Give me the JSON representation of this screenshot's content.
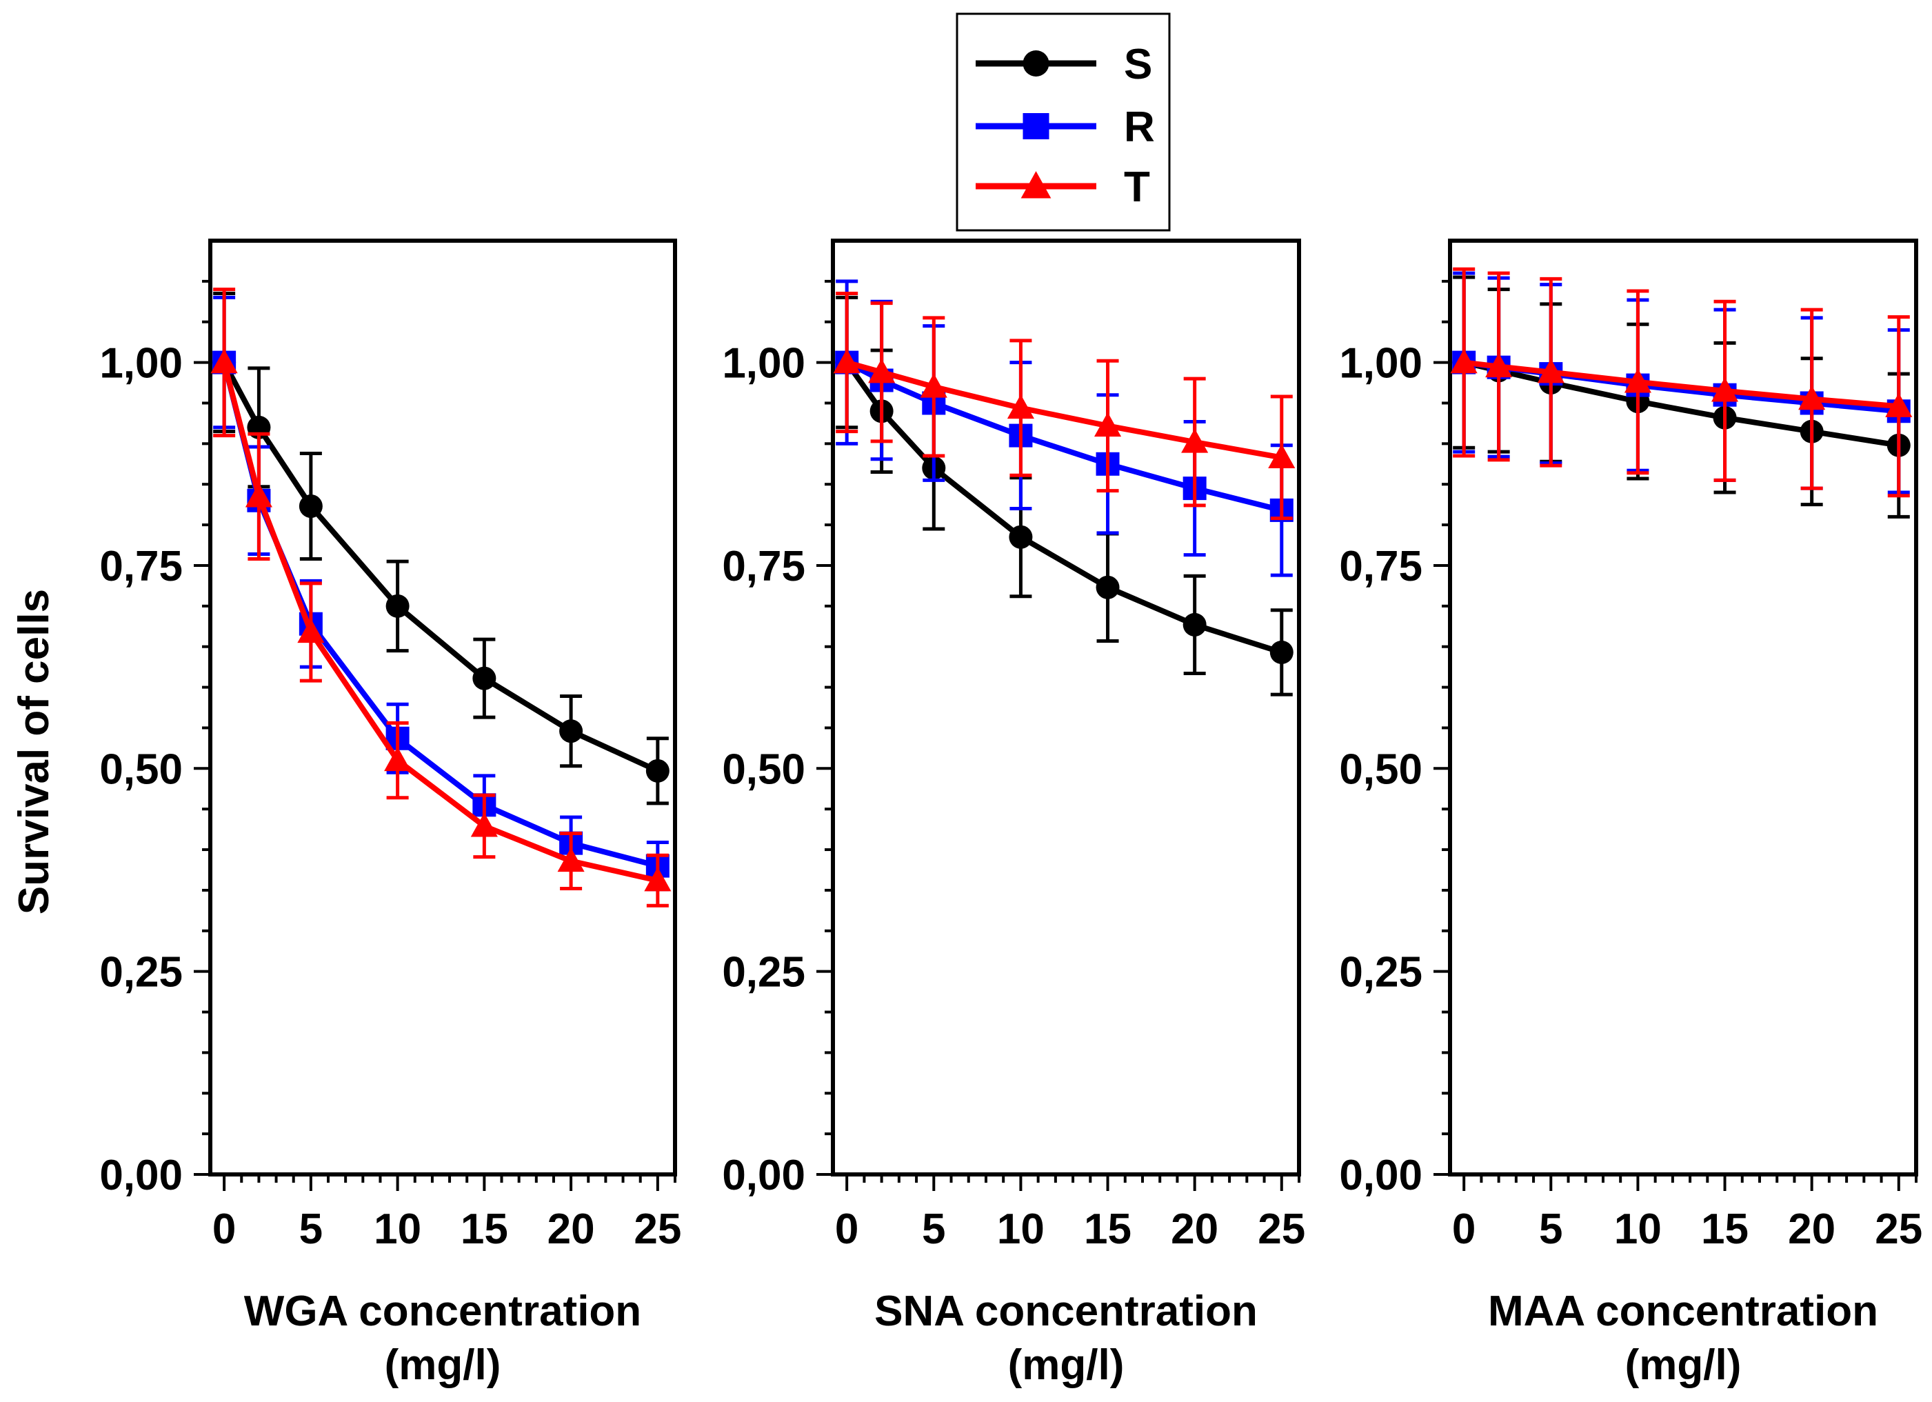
{
  "y_axis_title": "Survival of cells",
  "legend": [
    {
      "label": "S",
      "color": "#000000",
      "marker": "circle"
    },
    {
      "label": "R",
      "color": "#0000ff",
      "marker": "square"
    },
    {
      "label": "T",
      "color": "#ff0000",
      "marker": "triangle"
    }
  ],
  "chart_data": [
    {
      "type": "line",
      "xlabel_line1": "WGA concentration",
      "xlabel_line2": "(mg/l)",
      "ylabel": "Survival of cells",
      "x": [
        0,
        2,
        5,
        10,
        15,
        20,
        25
      ],
      "xlim": [
        -0.8,
        26
      ],
      "ylim": [
        0,
        1.15
      ],
      "xticks": [
        0,
        5,
        10,
        15,
        20,
        25
      ],
      "xtick_labels": [
        "0",
        "5",
        "10",
        "15",
        "20",
        "25"
      ],
      "yticks": [
        0,
        0.25,
        0.5,
        0.75,
        1.0
      ],
      "ytick_labels": [
        "0,00",
        "0,25",
        "0,50",
        "0,75",
        "1,00"
      ],
      "series": [
        {
          "name": "S",
          "values": [
            1.0,
            0.92,
            0.823,
            0.7,
            0.611,
            0.546,
            0.497
          ],
          "errors": [
            0.085,
            0.073,
            0.065,
            0.055,
            0.048,
            0.043,
            0.04
          ]
        },
        {
          "name": "R",
          "values": [
            1.0,
            0.83,
            0.678,
            0.537,
            0.455,
            0.408,
            0.38
          ],
          "errors": [
            0.08,
            0.066,
            0.053,
            0.042,
            0.036,
            0.032,
            0.029
          ]
        },
        {
          "name": "T",
          "values": [
            1.0,
            0.835,
            0.668,
            0.51,
            0.429,
            0.386,
            0.362
          ],
          "errors": [
            0.09,
            0.077,
            0.06,
            0.046,
            0.038,
            0.034,
            0.031
          ]
        }
      ]
    },
    {
      "type": "line",
      "xlabel_line1": "SNA concentration",
      "xlabel_line2": "(mg/l)",
      "ylabel": "",
      "x": [
        0,
        2,
        5,
        10,
        15,
        20,
        25
      ],
      "xlim": [
        -0.8,
        26
      ],
      "ylim": [
        0,
        1.15
      ],
      "xticks": [
        0,
        5,
        10,
        15,
        20,
        25
      ],
      "xtick_labels": [
        "0",
        "5",
        "10",
        "15",
        "20",
        "25"
      ],
      "yticks": [
        0,
        0.25,
        0.5,
        0.75,
        1.0
      ],
      "ytick_labels": [
        "0,00",
        "0,25",
        "0,50",
        "0,75",
        "1,00"
      ],
      "series": [
        {
          "name": "S",
          "values": [
            1.0,
            0.94,
            0.87,
            0.785,
            0.723,
            0.677,
            0.643
          ],
          "errors": [
            0.08,
            0.075,
            0.075,
            0.073,
            0.066,
            0.06,
            0.052
          ]
        },
        {
          "name": "R",
          "values": [
            1.0,
            0.978,
            0.95,
            0.91,
            0.875,
            0.845,
            0.818
          ],
          "errors": [
            0.1,
            0.097,
            0.095,
            0.09,
            0.085,
            0.082,
            0.08
          ]
        },
        {
          "name": "T",
          "values": [
            1.0,
            0.988,
            0.97,
            0.944,
            0.922,
            0.902,
            0.883
          ],
          "errors": [
            0.085,
            0.085,
            0.085,
            0.083,
            0.08,
            0.078,
            0.075
          ]
        }
      ]
    },
    {
      "type": "line",
      "xlabel_line1": "MAA concentration",
      "xlabel_line2": "(mg/l)",
      "ylabel": "",
      "x": [
        0,
        2,
        5,
        10,
        15,
        20,
        25
      ],
      "xlim": [
        -0.8,
        26
      ],
      "ylim": [
        0,
        1.15
      ],
      "xticks": [
        0,
        5,
        10,
        15,
        20,
        25
      ],
      "xtick_labels": [
        "0",
        "5",
        "10",
        "15",
        "20",
        "25"
      ],
      "yticks": [
        0,
        0.25,
        0.5,
        0.75,
        1.0
      ],
      "ytick_labels": [
        "0,00",
        "0,25",
        "0,50",
        "0,75",
        "1,00"
      ],
      "series": [
        {
          "name": "S",
          "values": [
            1.0,
            0.99,
            0.975,
            0.952,
            0.932,
            0.915,
            0.898
          ],
          "errors": [
            0.105,
            0.1,
            0.097,
            0.095,
            0.092,
            0.09,
            0.088
          ]
        },
        {
          "name": "R",
          "values": [
            1.0,
            0.994,
            0.986,
            0.972,
            0.96,
            0.95,
            0.94
          ],
          "errors": [
            0.11,
            0.11,
            0.11,
            0.105,
            0.105,
            0.105,
            0.1
          ]
        },
        {
          "name": "T",
          "values": [
            1.0,
            0.995,
            0.988,
            0.976,
            0.965,
            0.955,
            0.946
          ],
          "errors": [
            0.115,
            0.115,
            0.115,
            0.112,
            0.11,
            0.11,
            0.11
          ]
        }
      ]
    }
  ]
}
